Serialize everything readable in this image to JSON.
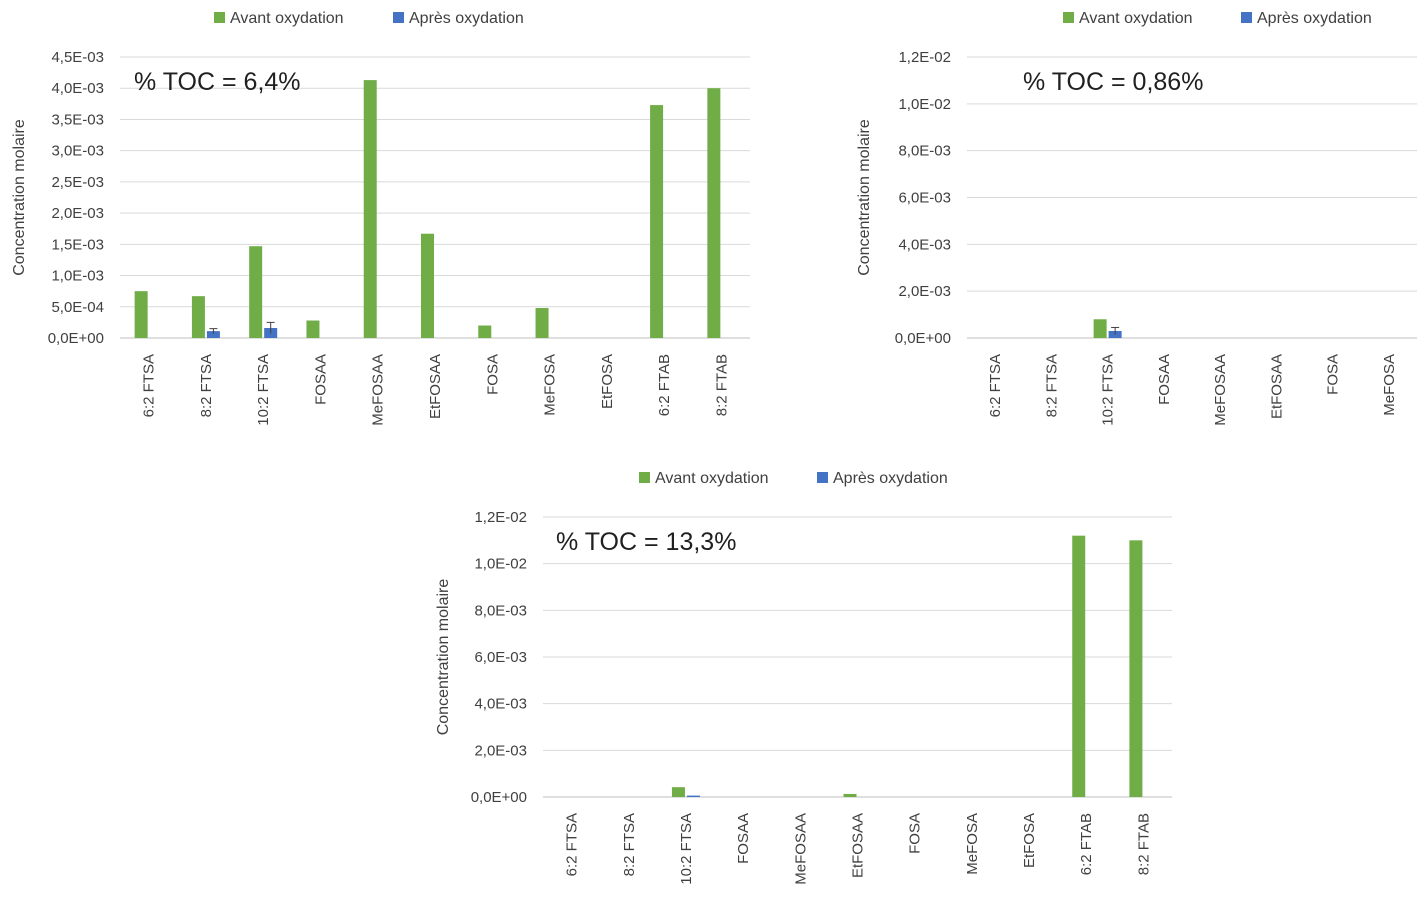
{
  "chart_data": [
    {
      "type": "bar",
      "annotation": "% TOC = 6,4%",
      "ylabel": "Concentration molaire",
      "ylim": [
        0,
        0.0045
      ],
      "yticks": [
        "0,0E+00",
        "5,0E-04",
        "1,0E-03",
        "1,5E-03",
        "2,0E-03",
        "2,5E-03",
        "3,0E-03",
        "3,5E-03",
        "4,0E-03",
        "4,5E-03"
      ],
      "categories": [
        "6:2 FTSA",
        "8:2 FTSA",
        "10:2 FTSA",
        "FOSAA",
        "MeFOSAA",
        "EtFOSAA",
        "FOSA",
        "MeFOSA",
        "EtFOSA",
        "6:2 FTAB",
        "8:2 FTAB"
      ],
      "legend": "top",
      "grid": true,
      "series": [
        {
          "name": "Avant oxydation",
          "color": "#70ad47",
          "values": [
            0.00075,
            0.00067,
            0.00147,
            0.00028,
            0.00413,
            0.00167,
            0.0002,
            0.00048,
            0,
            0.00373,
            0.004
          ]
        },
        {
          "name": "Après oxydation",
          "color": "#4472c4",
          "values": [
            0,
            0.00011,
            0.00016,
            0,
            0,
            0,
            0,
            0,
            0,
            0,
            0
          ],
          "errors": [
            0,
            4e-05,
            9e-05,
            0,
            0,
            0,
            0,
            0,
            0,
            0,
            0
          ]
        }
      ]
    },
    {
      "type": "bar",
      "annotation": "% TOC = 0,86%",
      "ylabel": "Concentration molaire",
      "ylim": [
        0,
        0.012
      ],
      "yticks": [
        "0,0E+00",
        "2,0E-03",
        "4,0E-03",
        "6,0E-03",
        "8,0E-03",
        "1,0E-02",
        "1,2E-02"
      ],
      "categories": [
        "6:2 FTSA",
        "8:2 FTSA",
        "10:2 FTSA",
        "FOSAA",
        "MeFOSAA",
        "EtFOSAA",
        "FOSA",
        "MeFOSA"
      ],
      "legend": "top-right",
      "grid": true,
      "series": [
        {
          "name": "Avant oxydation",
          "color": "#70ad47",
          "values": [
            0,
            0,
            0.0008,
            0,
            0,
            0,
            0,
            0
          ]
        },
        {
          "name": "Après oxydation",
          "color": "#4472c4",
          "values": [
            0,
            0,
            0.0003,
            0,
            0,
            0,
            0,
            0
          ],
          "errors": [
            0,
            0,
            0.00015,
            0,
            0,
            0,
            0,
            0
          ]
        }
      ]
    },
    {
      "type": "bar",
      "annotation": "% TOC = 13,3%",
      "ylabel": "Concentration molaire",
      "ylim": [
        0,
        0.012
      ],
      "yticks": [
        "0,0E+00",
        "2,0E-03",
        "4,0E-03",
        "6,0E-03",
        "8,0E-03",
        "1,0E-02",
        "1,2E-02"
      ],
      "categories": [
        "6:2 FTSA",
        "8:2 FTSA",
        "10:2 FTSA",
        "FOSAA",
        "MeFOSAA",
        "EtFOSAA",
        "FOSA",
        "MeFOSA",
        "EtFOSA",
        "6:2 FTAB",
        "8:2 FTAB"
      ],
      "legend": "top",
      "grid": true,
      "series": [
        {
          "name": "Avant oxydation",
          "color": "#70ad47",
          "values": [
            0,
            0,
            0.00042,
            0,
            0,
            0.00013,
            0,
            0,
            0,
            0.0112,
            0.011
          ]
        },
        {
          "name": "Après oxydation",
          "color": "#4472c4",
          "values": [
            0,
            0,
            6e-05,
            0,
            0,
            0,
            0,
            0,
            0,
            0,
            0
          ],
          "errors": [
            0,
            0,
            0,
            0,
            0,
            0,
            0,
            0,
            0,
            0,
            0
          ]
        }
      ]
    }
  ]
}
